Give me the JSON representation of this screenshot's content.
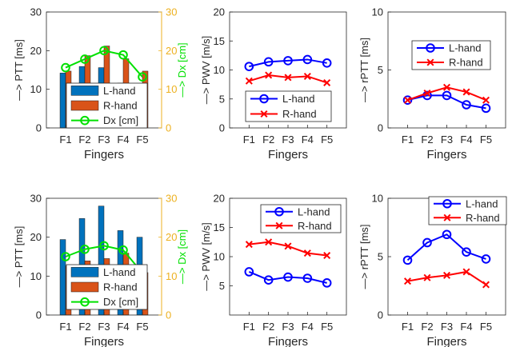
{
  "chart_data": [
    {
      "type": "bar",
      "panel": "top-left",
      "categories": [
        "F1",
        "F2",
        "F3",
        "F4",
        "F5"
      ],
      "xlabel": "Fingers",
      "ylabel": "—> PTT [ms]",
      "ylim": [
        0,
        30
      ],
      "yticks": [
        0,
        10,
        20,
        30
      ],
      "y2label": "—> Dx [cm]",
      "y2lim": [
        0,
        30
      ],
      "y2ticks": [
        0,
        10,
        20,
        30
      ],
      "legend": "bottom-center",
      "series": [
        {
          "name": "L-hand",
          "kind": "bar",
          "color": "#0072BD",
          "values": [
            14.2,
            15.9,
            15.6,
            11.6,
            10.5
          ]
        },
        {
          "name": "R-hand",
          "kind": "bar",
          "color": "#D95319",
          "values": [
            14.7,
            18.7,
            21.2,
            17.9,
            14.7
          ]
        },
        {
          "name": "Dx [cm]",
          "kind": "line",
          "axis": "right",
          "marker": "circle",
          "color": "#00E000",
          "values": [
            15.6,
            17.8,
            20.0,
            18.9,
            13.2
          ]
        }
      ]
    },
    {
      "type": "line",
      "panel": "top-middle",
      "categories": [
        "F1",
        "F2",
        "F3",
        "F4",
        "F5"
      ],
      "xlabel": "Fingers",
      "ylabel": "—> PWV [m/s]",
      "ylim": [
        0,
        20
      ],
      "yticks": [
        0,
        5,
        10,
        15,
        20
      ],
      "legend": "bottom-center",
      "series": [
        {
          "name": "L-hand",
          "marker": "circle",
          "color": "#0000FF",
          "values": [
            10.6,
            11.4,
            11.6,
            11.8,
            11.2
          ]
        },
        {
          "name": "R-hand",
          "marker": "x",
          "color": "#FF0000",
          "values": [
            8.1,
            9.1,
            8.7,
            8.9,
            7.8
          ]
        }
      ]
    },
    {
      "type": "line",
      "panel": "top-right",
      "categories": [
        "F1",
        "F2",
        "F3",
        "F4",
        "F5"
      ],
      "xlabel": "Fingers",
      "ylabel": "—> rPTT [ms]",
      "ylim": [
        0,
        10
      ],
      "yticks": [
        0,
        5,
        10
      ],
      "legend": "top-center",
      "series": [
        {
          "name": "L-hand",
          "marker": "circle",
          "color": "#0000FF",
          "values": [
            2.4,
            2.8,
            2.8,
            2.0,
            1.7
          ]
        },
        {
          "name": "R-hand",
          "marker": "x",
          "color": "#FF0000",
          "values": [
            2.4,
            3.0,
            3.5,
            3.1,
            2.4
          ]
        }
      ]
    },
    {
      "type": "bar",
      "panel": "bottom-left",
      "categories": [
        "F1",
        "F2",
        "F3",
        "F4",
        "F5"
      ],
      "xlabel": "Fingers",
      "ylabel": "—> PTT [ms]",
      "ylim": [
        0,
        30
      ],
      "yticks": [
        0,
        10,
        20,
        30
      ],
      "y2label": "—> Dx [cm]",
      "y2lim": [
        0,
        30
      ],
      "y2ticks": [
        0,
        10,
        20,
        30
      ],
      "legend": "bottom-center",
      "series": [
        {
          "name": "L-hand",
          "kind": "bar",
          "color": "#0072BD",
          "values": [
            19.4,
            24.8,
            28.0,
            21.7,
            20.0
          ]
        },
        {
          "name": "R-hand",
          "kind": "bar",
          "color": "#D95319",
          "values": [
            12.6,
            13.9,
            14.5,
            15.9,
            10.9
          ]
        },
        {
          "name": "Dx [cm]",
          "kind": "line",
          "axis": "right",
          "marker": "circle",
          "color": "#00E000",
          "values": [
            15.0,
            16.9,
            17.8,
            16.7,
            10.8
          ]
        }
      ]
    },
    {
      "type": "line",
      "panel": "bottom-middle",
      "categories": [
        "F1",
        "F2",
        "F3",
        "F4",
        "F5"
      ],
      "xlabel": "Fingers",
      "ylabel": "—> PWV [m/s]",
      "ylim": [
        0,
        20
      ],
      "yticks": [
        5,
        10,
        15,
        20
      ],
      "legend": "top-right",
      "series": [
        {
          "name": "L-hand",
          "marker": "circle",
          "color": "#0000FF",
          "values": [
            7.4,
            6.0,
            6.5,
            6.3,
            5.5
          ]
        },
        {
          "name": "R-hand",
          "marker": "x",
          "color": "#FF0000",
          "values": [
            12.1,
            12.5,
            11.8,
            10.6,
            10.2
          ]
        }
      ]
    },
    {
      "type": "line",
      "panel": "bottom-right",
      "categories": [
        "F1",
        "F2",
        "F3",
        "F4",
        "F5"
      ],
      "xlabel": "Fingers",
      "ylabel": "—> rPTT [ms]",
      "ylim": [
        0,
        10
      ],
      "yticks": [
        0,
        5,
        10
      ],
      "legend": "top-right",
      "series": [
        {
          "name": "L-hand",
          "marker": "circle",
          "color": "#0000FF",
          "values": [
            4.7,
            6.2,
            6.9,
            5.4,
            4.8
          ]
        },
        {
          "name": "R-hand",
          "marker": "x",
          "color": "#FF0000",
          "values": [
            2.9,
            3.2,
            3.4,
            3.7,
            2.6
          ]
        }
      ]
    }
  ]
}
